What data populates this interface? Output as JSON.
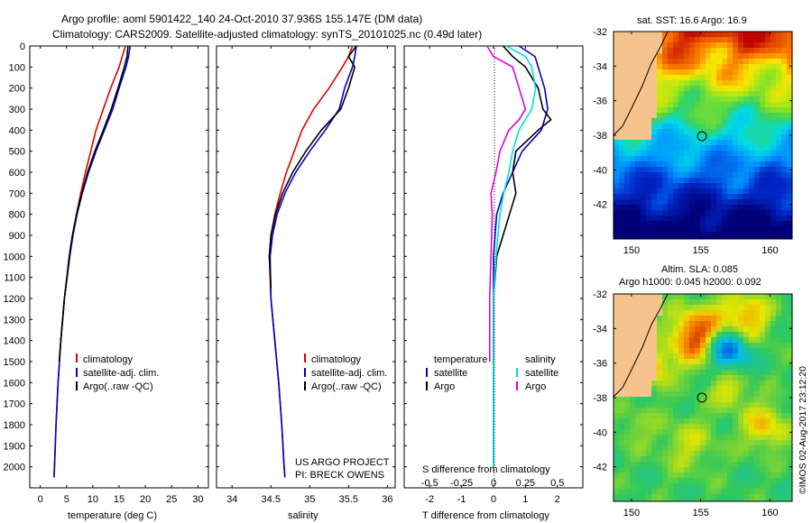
{
  "header": {
    "line1": "Argo profile: aoml 5901422_140 24-Oct-2010 37.936S 155.147E (DM data)",
    "line2": "Climatology: CARS2009. Satellite-adjusted climatology: synTS_20101025.nc (0.49d later)"
  },
  "colors": {
    "climatology": "#e00000",
    "satellite": "#0000d0",
    "argo": "#000000",
    "sat_sal": "#00e0e0",
    "argo_sal": "#e000e0",
    "land": "#f5c38e"
  },
  "chart_data": [
    {
      "type": "line",
      "id": "temperature",
      "xlabel": "temperature (deg C)",
      "ylabel": "",
      "xlim": [
        -2,
        32
      ],
      "ylim": [
        2100,
        0
      ],
      "xticks": [
        "0",
        "5",
        "10",
        "15",
        "20",
        "25",
        "30"
      ],
      "yticks": [
        "0",
        "100",
        "200",
        "300",
        "400",
        "500",
        "600",
        "700",
        "800",
        "900",
        "1000",
        "1100",
        "1200",
        "1300",
        "1400",
        "1500",
        "1600",
        "1700",
        "1800",
        "1900",
        "2000"
      ],
      "legend": [
        "climatology",
        "satellite-adj. clim.",
        "Argo(..raw -QC)"
      ],
      "series": [
        {
          "name": "climatology",
          "color": "#e00000",
          "depth": [
            0,
            50,
            100,
            200,
            300,
            400,
            500,
            600,
            700,
            800,
            900,
            1000,
            1200,
            1400,
            1600,
            1800,
            2000,
            2050
          ],
          "values": [
            16.2,
            15.6,
            15.0,
            13.4,
            12.0,
            10.6,
            9.6,
            8.6,
            7.7,
            6.9,
            6.2,
            5.6,
            4.6,
            3.9,
            3.4,
            3.0,
            2.7,
            2.6
          ]
        },
        {
          "name": "satellite-adj. clim.",
          "color": "#0000d0",
          "depth": [
            0,
            50,
            100,
            200,
            300,
            400,
            500,
            600,
            700,
            800,
            900,
            1000,
            1200,
            1400,
            1600,
            1800,
            2000,
            2050
          ],
          "values": [
            17.1,
            16.8,
            16.3,
            15.0,
            13.8,
            12.2,
            10.6,
            9.2,
            8.0,
            7.0,
            6.2,
            5.6,
            4.6,
            3.9,
            3.4,
            3.0,
            2.7,
            2.6
          ]
        },
        {
          "name": "Argo(..raw -QC)",
          "color": "#000000",
          "depth": [
            0,
            50,
            100,
            200,
            300,
            400,
            500,
            600,
            700,
            800,
            900,
            1000,
            1200,
            1400,
            1500
          ],
          "values": [
            16.7,
            16.5,
            16.0,
            14.8,
            13.5,
            12.0,
            10.4,
            9.0,
            7.9,
            6.9,
            6.1,
            5.5,
            4.6,
            3.9,
            3.6
          ]
        }
      ]
    },
    {
      "type": "line",
      "id": "salinity",
      "xlabel": "salinity",
      "xlim": [
        33.8,
        36.1
      ],
      "ylim": [
        2100,
        0
      ],
      "xticks": [
        "34",
        "34.5",
        "35",
        "35.5",
        "36"
      ],
      "legend": [
        "climatology",
        "satellite-adj. clim.",
        "Argo(..raw -QC)"
      ],
      "series": [
        {
          "name": "climatology",
          "color": "#e00000",
          "depth": [
            0,
            50,
            100,
            200,
            300,
            400,
            500,
            600,
            700,
            800,
            900,
            1000,
            1200,
            1400,
            1600,
            1800,
            2000,
            2050
          ],
          "values": [
            35.55,
            35.5,
            35.42,
            35.25,
            35.05,
            34.9,
            34.8,
            34.7,
            34.62,
            34.55,
            34.5,
            34.48,
            34.5,
            34.55,
            34.6,
            34.64,
            34.67,
            34.68
          ]
        },
        {
          "name": "satellite-adj. clim.",
          "color": "#0000d0",
          "depth": [
            0,
            50,
            100,
            200,
            300,
            400,
            500,
            600,
            700,
            800,
            900,
            1000,
            1200,
            1400,
            1600,
            1800,
            2000,
            2050
          ],
          "values": [
            35.6,
            35.58,
            35.55,
            35.45,
            35.38,
            35.2,
            35.0,
            34.82,
            34.68,
            34.58,
            34.52,
            34.49,
            34.5,
            34.55,
            34.6,
            34.64,
            34.67,
            34.68
          ]
        },
        {
          "name": "Argo(..raw -QC)",
          "color": "#000000",
          "depth": [
            0,
            50,
            100,
            200,
            300,
            400,
            500,
            600,
            700,
            800,
            900,
            1000,
            1150
          ],
          "values": [
            35.6,
            35.5,
            35.58,
            35.5,
            35.4,
            35.15,
            34.95,
            34.78,
            34.65,
            34.56,
            34.5,
            34.48,
            34.5
          ]
        }
      ]
    },
    {
      "type": "line",
      "id": "difference",
      "xlabel": "T difference from climatology",
      "xlabel2": "S difference from climatology",
      "xlim": [
        -2.8,
        2.8
      ],
      "ylim": [
        2100,
        0
      ],
      "xticks": [
        "-2",
        "-1",
        "0",
        "1",
        "2"
      ],
      "xticks2": [
        "-0.5",
        "-0.25",
        "0",
        "0.25",
        "0.5"
      ],
      "legend": {
        "temperature": [
          "satellite",
          "Argo"
        ],
        "salinity": [
          "satellite",
          "Argo"
        ],
        "headers": [
          "temperature",
          "salinity"
        ]
      },
      "series": [
        {
          "name": "T satellite",
          "color": "#0000d0",
          "depth": [
            0,
            50,
            100,
            200,
            300,
            400,
            500,
            600,
            700,
            800,
            1000,
            1200,
            1400,
            1600,
            2000
          ],
          "values": [
            0.8,
            1.3,
            1.4,
            1.6,
            1.7,
            1.5,
            0.9,
            0.6,
            0.3,
            0.1,
            0.0,
            0.0,
            0.0,
            0.0,
            0.0
          ]
        },
        {
          "name": "T Argo",
          "color": "#000000",
          "depth": [
            0,
            50,
            100,
            200,
            300,
            350,
            400,
            500,
            600,
            700,
            800,
            1000,
            1200,
            1400,
            1500
          ],
          "values": [
            0.3,
            0.6,
            1.0,
            1.4,
            1.55,
            1.8,
            1.4,
            0.7,
            0.6,
            0.7,
            0.5,
            0.1,
            0.0,
            0.0,
            0.0
          ]
        },
        {
          "name": "S satellite",
          "color": "#00e0e0",
          "depth": [
            0,
            50,
            100,
            200,
            300,
            400,
            500,
            600,
            700,
            800,
            1000,
            1200,
            1400,
            1600,
            2000
          ],
          "values": [
            0.1,
            0.25,
            0.3,
            0.33,
            0.3,
            0.2,
            0.15,
            0.12,
            0.08,
            0.05,
            0.02,
            0.0,
            0.0,
            0.0,
            0.0
          ]
        },
        {
          "name": "S Argo",
          "color": "#e000e0",
          "depth": [
            0,
            50,
            100,
            200,
            300,
            350,
            400,
            500,
            600,
            700,
            800,
            1000,
            1200,
            1400,
            1500
          ],
          "values": [
            -0.05,
            0.0,
            0.15,
            0.2,
            0.25,
            0.2,
            0.12,
            0.05,
            0.02,
            -0.02,
            -0.01,
            -0.02,
            -0.03,
            -0.03,
            -0.03
          ]
        }
      ]
    }
  ],
  "project": {
    "line1": "US ARGO PROJECT",
    "line2": "PI: BRECK OWENS"
  },
  "maps": {
    "sst_title": "sat. SST: 16.6 Argo: 16.9",
    "sla_title1": "Altim. SLA: 0.085",
    "sla_title2": "Argo h1000: 0.045 h2000: 0.092",
    "lat_ticks": [
      "-32",
      "-34",
      "-36",
      "-38",
      "-40",
      "-42"
    ],
    "lon_ticks": [
      "150",
      "155",
      "160"
    ],
    "float_lat": -37.936,
    "float_lon": 155.147
  },
  "stamp": "©IMOS 02-Aug-2017 23:12:20"
}
